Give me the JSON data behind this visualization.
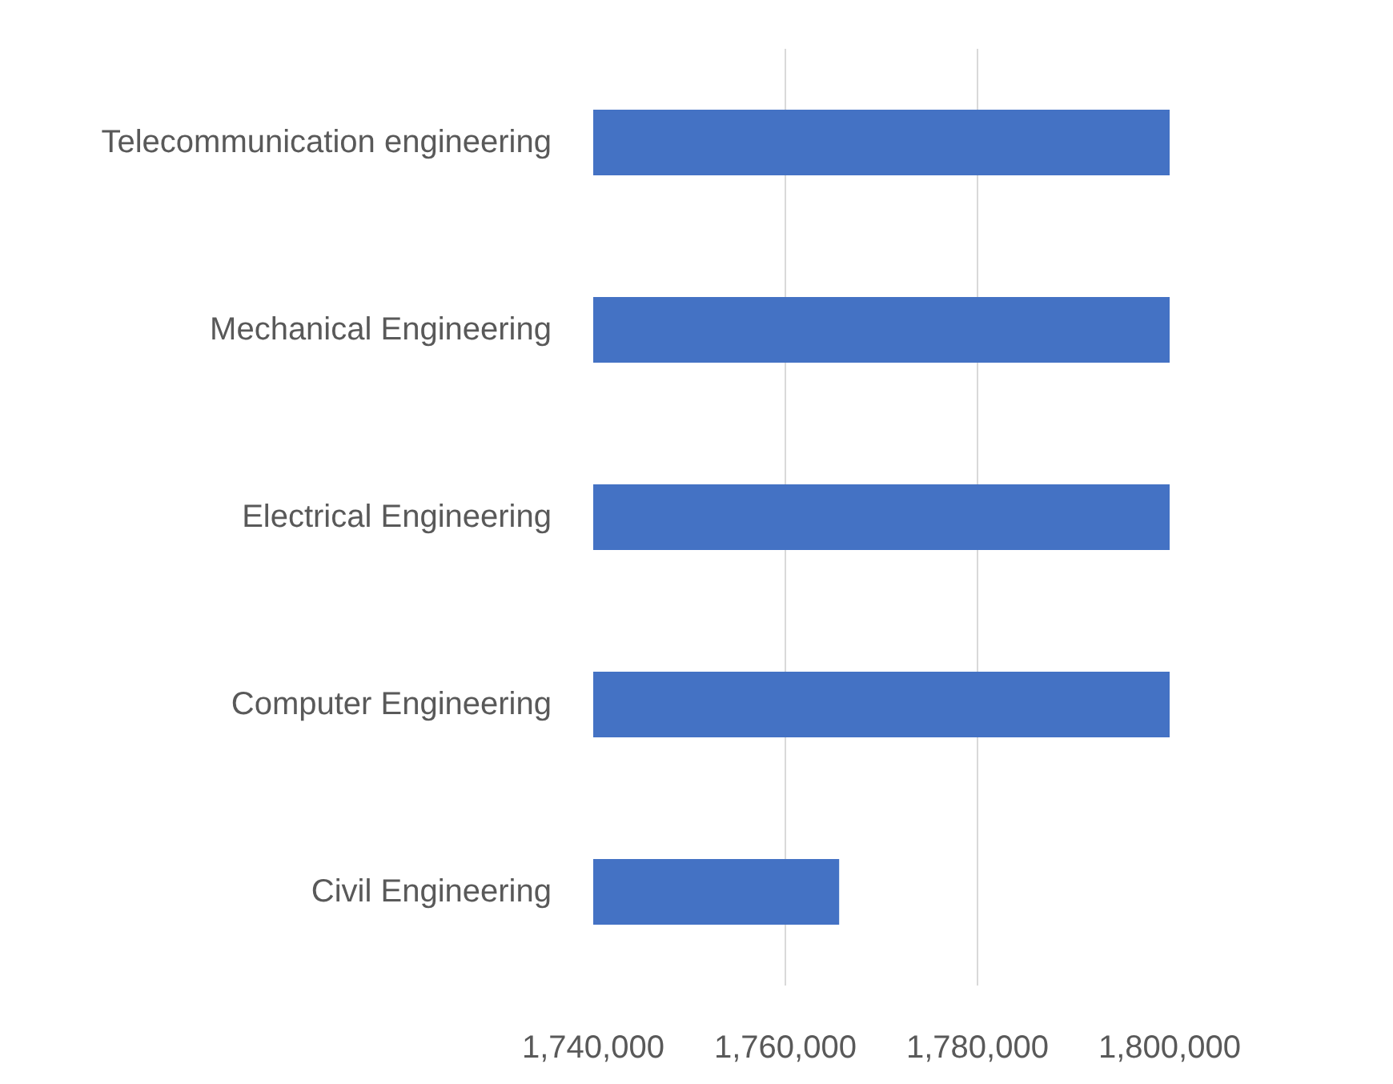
{
  "chart_data": {
    "type": "bar",
    "orientation": "horizontal",
    "categories": [
      "Telecommunication engineering",
      "Mechanical Engineering",
      "Electrical Engineering",
      "Computer Engineering",
      "Civil Engineering"
    ],
    "values": [
      1800000,
      1800000,
      1800000,
      1800000,
      1765600
    ],
    "color": "#4472c4",
    "xlim": [
      1740000,
      1800000
    ],
    "xticks": [
      {
        "value": 1740000,
        "label": "1,740,000"
      },
      {
        "value": 1760000,
        "label": "1,760,000"
      },
      {
        "value": 1780000,
        "label": "1,780,000"
      },
      {
        "value": 1800000,
        "label": "1,800,000"
      }
    ],
    "grid": "x"
  }
}
